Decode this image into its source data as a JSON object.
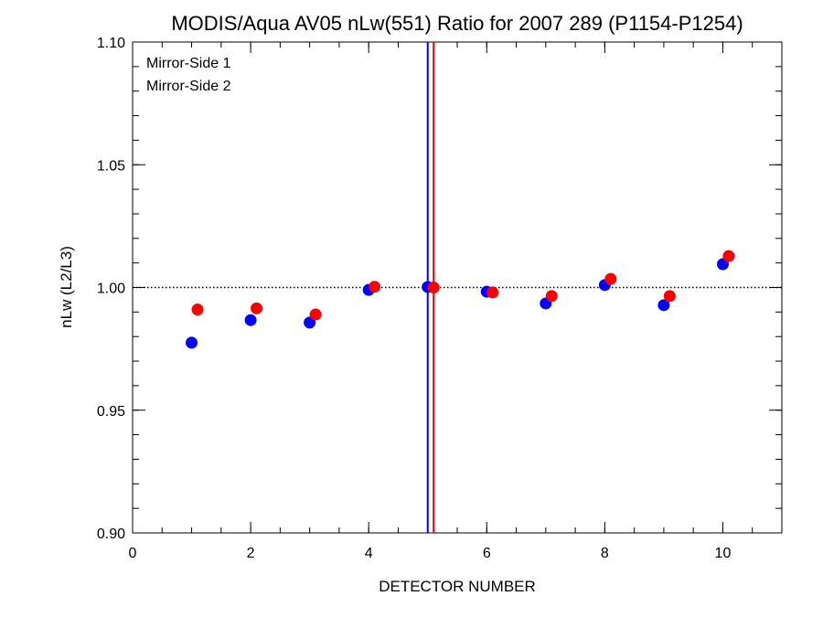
{
  "chart_data": {
    "type": "scatter",
    "title": "MODIS/Aqua AV05 nLw(551) Ratio for 2007 289 (P1154-P1254)",
    "xlabel": "DETECTOR NUMBER",
    "ylabel": "nLw (L2/L3)",
    "xlim": [
      0,
      11
    ],
    "ylim": [
      0.9,
      1.1
    ],
    "x_ticks": [
      0,
      2,
      4,
      6,
      8,
      10
    ],
    "x_tick_labels": [
      "0",
      "2",
      "4",
      "6",
      "8",
      "10"
    ],
    "y_ticks": [
      0.9,
      0.95,
      1.0,
      1.05,
      1.1
    ],
    "y_tick_labels": [
      "0.90",
      "0.95",
      "1.00",
      "1.05",
      "1.10"
    ],
    "reference_line_y": 1.0,
    "vertical_lines": [
      {
        "x": 5.0,
        "color": "#0000ff"
      },
      {
        "x": 5.1,
        "color": "#ff0000"
      }
    ],
    "legend_placement": "top-left",
    "series": [
      {
        "name": "Mirror-Side 1",
        "color": "#0000ff",
        "x": [
          1,
          2,
          3,
          4,
          5,
          6,
          7,
          8,
          9,
          10
        ],
        "values": [
          0.9775,
          0.9867,
          0.9857,
          0.999,
          1.0002,
          0.9983,
          0.9935,
          1.001,
          0.9928,
          1.0095
        ]
      },
      {
        "name": "Mirror-Side 2",
        "color": "#ff0000",
        "x": [
          1.1,
          2.1,
          3.1,
          4.1,
          5.1,
          6.1,
          7.1,
          8.1,
          9.1,
          10.1
        ],
        "values": [
          0.991,
          0.9915,
          0.989,
          1.0003,
          1.0,
          0.998,
          0.9965,
          1.0035,
          0.9965,
          1.0128
        ]
      }
    ]
  }
}
